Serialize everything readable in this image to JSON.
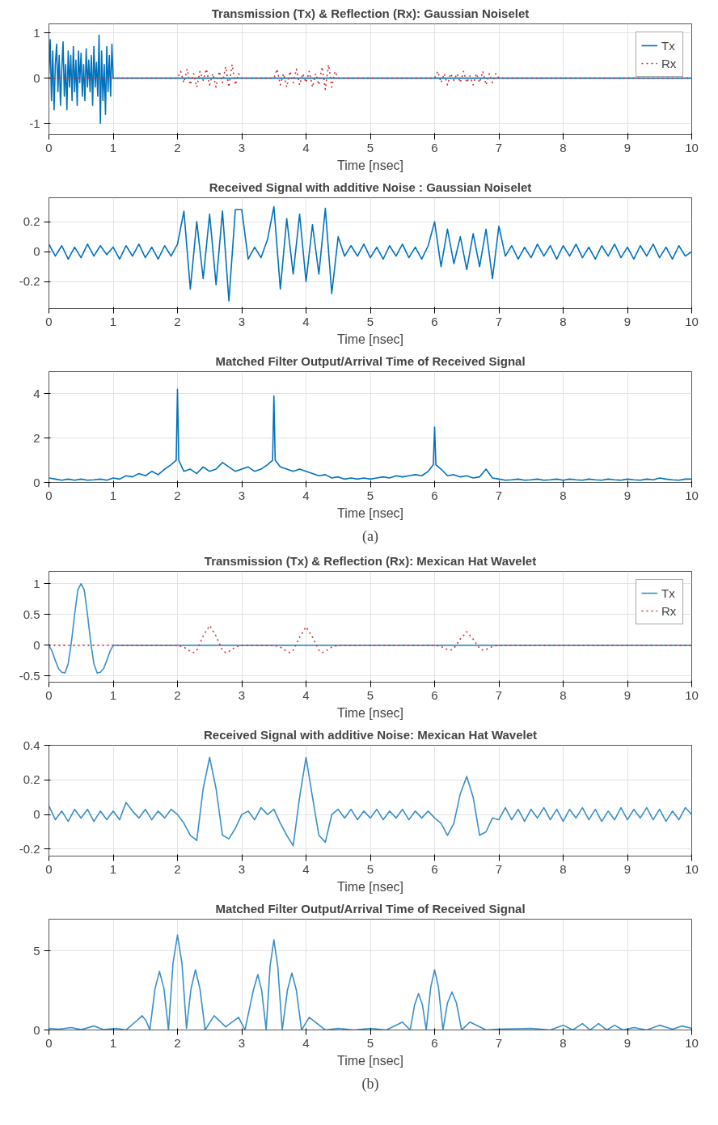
{
  "chart_data": [
    {
      "type": "line",
      "title": "Transmission (Tx) & Reflection (Rx): Gaussian Noiselet",
      "xlabel": "Time [nsec]",
      "xlim": [
        0,
        10
      ],
      "xticks": [
        0,
        1,
        2,
        3,
        4,
        5,
        6,
        7,
        8,
        9,
        10
      ],
      "ylim": [
        -1.25,
        1.2
      ],
      "yticks": [
        -1,
        0,
        1
      ],
      "grid": true,
      "legend": "top right",
      "series": [
        {
          "name": "Tx",
          "color": "#0072bd",
          "line_style": "solid",
          "x": [
            0,
            0.02,
            0.04,
            0.06,
            0.08,
            0.1,
            0.12,
            0.14,
            0.16,
            0.18,
            0.2,
            0.22,
            0.24,
            0.26,
            0.28,
            0.3,
            0.32,
            0.34,
            0.36,
            0.38,
            0.4,
            0.42,
            0.44,
            0.46,
            0.48,
            0.5,
            0.52,
            0.54,
            0.56,
            0.58,
            0.6,
            0.62,
            0.64,
            0.66,
            0.68,
            0.7,
            0.72,
            0.74,
            0.76,
            0.78,
            0.8,
            0.82,
            0.84,
            0.86,
            0.88,
            0.9,
            0.92,
            0.94,
            0.96,
            0.98,
            1.0,
            10
          ],
          "values": [
            0.1,
            0.85,
            -0.5,
            0.6,
            -0.7,
            0.3,
            0.75,
            -0.3,
            0.5,
            -0.6,
            0.2,
            0.8,
            -0.4,
            0.3,
            -0.7,
            0.6,
            -0.2,
            0.5,
            -0.5,
            0.7,
            -0.3,
            0.4,
            -0.6,
            0.6,
            -0.1,
            0.55,
            -0.4,
            0.3,
            -0.5,
            0.65,
            -0.2,
            0.4,
            -0.3,
            0.5,
            -0.6,
            0.7,
            -0.2,
            0.35,
            -0.4,
            0.95,
            -1.0,
            0.6,
            -0.5,
            0.3,
            -0.8,
            0.7,
            -0.3,
            0.5,
            -0.4,
            0.75,
            0,
            0
          ]
        },
        {
          "name": "Rx",
          "color": "#cc3333",
          "line_style": "dotted",
          "x": [
            0,
            2.0,
            2.05,
            2.1,
            2.15,
            2.2,
            2.25,
            2.3,
            2.35,
            2.4,
            2.45,
            2.5,
            2.55,
            2.6,
            2.65,
            2.7,
            2.75,
            2.8,
            2.85,
            2.9,
            2.95,
            3.0,
            3.5,
            3.55,
            3.6,
            3.65,
            3.7,
            3.75,
            3.8,
            3.85,
            3.9,
            3.95,
            4.0,
            4.05,
            4.1,
            4.15,
            4.2,
            4.25,
            4.3,
            4.35,
            4.4,
            4.45,
            4.5,
            6.0,
            6.05,
            6.1,
            6.15,
            6.2,
            6.25,
            6.3,
            6.35,
            6.4,
            6.45,
            6.5,
            6.55,
            6.6,
            6.65,
            6.7,
            6.75,
            6.8,
            6.85,
            6.9,
            6.95,
            7.0,
            10
          ],
          "values": [
            0,
            0,
            0.15,
            -0.1,
            0.2,
            -0.15,
            0.1,
            -0.2,
            0.15,
            -0.05,
            0.2,
            -0.15,
            0.1,
            -0.2,
            0.15,
            -0.1,
            0.25,
            -0.2,
            0.3,
            -0.15,
            0.1,
            0,
            0,
            0.2,
            -0.15,
            0.1,
            -0.2,
            0.15,
            -0.1,
            0.2,
            -0.15,
            0.1,
            -0.1,
            0.15,
            -0.2,
            0.1,
            -0.15,
            0.25,
            -0.25,
            0.3,
            -0.2,
            0.15,
            0,
            0,
            0.15,
            -0.1,
            0.1,
            -0.15,
            0.1,
            -0.05,
            0.1,
            -0.1,
            0.15,
            -0.1,
            0.05,
            -0.15,
            0.1,
            -0.1,
            0.15,
            -0.15,
            0.1,
            -0.1,
            0.1,
            0,
            0
          ]
        }
      ]
    },
    {
      "type": "line",
      "title": "Received Signal with additive Noise : Gaussian Noiselet",
      "xlabel": "Time [nsec]",
      "xlim": [
        0,
        10
      ],
      "xticks": [
        0,
        1,
        2,
        3,
        4,
        5,
        6,
        7,
        8,
        9,
        10
      ],
      "ylim": [
        -0.38,
        0.36
      ],
      "yticks": [
        -0.2,
        0,
        0.2
      ],
      "grid": true,
      "series": [
        {
          "color": "#0072bd",
          "line_style": "solid",
          "x": [
            0,
            0.1,
            0.2,
            0.3,
            0.4,
            0.5,
            0.6,
            0.7,
            0.8,
            0.9,
            1.0,
            1.1,
            1.2,
            1.3,
            1.4,
            1.5,
            1.6,
            1.7,
            1.8,
            1.9,
            2.0,
            2.1,
            2.2,
            2.3,
            2.4,
            2.5,
            2.6,
            2.7,
            2.8,
            2.9,
            3.0,
            3.1,
            3.2,
            3.3,
            3.4,
            3.5,
            3.6,
            3.7,
            3.8,
            3.9,
            4.0,
            4.1,
            4.2,
            4.3,
            4.4,
            4.5,
            4.6,
            4.7,
            4.8,
            4.9,
            5.0,
            5.1,
            5.2,
            5.3,
            5.4,
            5.5,
            5.6,
            5.7,
            5.8,
            5.9,
            6.0,
            6.1,
            6.2,
            6.3,
            6.4,
            6.5,
            6.6,
            6.7,
            6.8,
            6.9,
            7.0,
            7.1,
            7.2,
            7.3,
            7.4,
            7.5,
            7.6,
            7.7,
            7.8,
            7.9,
            8.0,
            8.1,
            8.2,
            8.3,
            8.4,
            8.5,
            8.6,
            8.7,
            8.8,
            8.9,
            9.0,
            9.1,
            9.2,
            9.3,
            9.4,
            9.5,
            9.6,
            9.7,
            9.8,
            9.9,
            10.0
          ],
          "values": [
            0.05,
            -0.03,
            0.04,
            -0.05,
            0.03,
            -0.04,
            0.05,
            -0.03,
            0.04,
            -0.02,
            0.03,
            -0.05,
            0.04,
            -0.03,
            0.05,
            -0.04,
            0.03,
            -0.05,
            0.04,
            -0.03,
            0.05,
            0.27,
            -0.25,
            0.2,
            -0.18,
            0.25,
            -0.22,
            0.27,
            -0.33,
            0.28,
            0.28,
            -0.05,
            0.03,
            -0.04,
            0.08,
            0.3,
            -0.25,
            0.22,
            -0.15,
            0.25,
            -0.2,
            0.18,
            -0.15,
            0.29,
            -0.28,
            0.1,
            -0.03,
            0.04,
            -0.03,
            0.05,
            -0.04,
            0.03,
            -0.05,
            0.04,
            -0.03,
            0.05,
            -0.04,
            0.03,
            -0.05,
            0.04,
            0.2,
            -0.1,
            0.15,
            -0.08,
            0.1,
            -0.12,
            0.12,
            -0.1,
            0.15,
            -0.18,
            0.17,
            -0.03,
            0.04,
            -0.05,
            0.03,
            -0.04,
            0.05,
            -0.03,
            0.04,
            -0.05,
            0.04,
            -0.03,
            0.05,
            -0.04,
            0.03,
            -0.05,
            0.04,
            -0.03,
            0.05,
            -0.04,
            0.03,
            -0.05,
            0.04,
            -0.03,
            0.05,
            -0.04,
            0.03,
            -0.05,
            0.04,
            -0.03,
            0.0
          ]
        }
      ]
    },
    {
      "type": "line",
      "title": "Matched Filter Output/Arrival Time of Received Signal",
      "xlabel": "Time [nsec]",
      "xlim": [
        0,
        10
      ],
      "xticks": [
        0,
        1,
        2,
        3,
        4,
        5,
        6,
        7,
        8,
        9,
        10
      ],
      "ylim": [
        0,
        5
      ],
      "yticks": [
        0,
        2,
        4
      ],
      "grid": true,
      "annotations": [
        "(a)"
      ],
      "series": [
        {
          "color": "#0072bd",
          "line_style": "solid",
          "x": [
            0,
            0.1,
            0.2,
            0.3,
            0.4,
            0.5,
            0.6,
            0.7,
            0.8,
            0.9,
            1.0,
            1.1,
            1.2,
            1.3,
            1.4,
            1.5,
            1.6,
            1.7,
            1.8,
            1.9,
            1.98,
            2.0,
            2.02,
            2.1,
            2.2,
            2.3,
            2.4,
            2.5,
            2.6,
            2.7,
            2.8,
            2.9,
            3.0,
            3.1,
            3.2,
            3.3,
            3.4,
            3.48,
            3.5,
            3.52,
            3.6,
            3.7,
            3.8,
            3.9,
            4.0,
            4.1,
            4.2,
            4.3,
            4.4,
            4.5,
            4.6,
            4.7,
            4.8,
            4.9,
            5.0,
            5.1,
            5.2,
            5.3,
            5.4,
            5.5,
            5.6,
            5.7,
            5.8,
            5.9,
            5.98,
            6.0,
            6.02,
            6.1,
            6.2,
            6.3,
            6.4,
            6.5,
            6.6,
            6.7,
            6.8,
            6.9,
            7.0,
            7.1,
            7.2,
            7.3,
            7.4,
            7.5,
            7.6,
            7.7,
            7.8,
            7.9,
            8.0,
            8.1,
            8.2,
            8.3,
            8.4,
            8.5,
            8.6,
            8.7,
            8.8,
            8.9,
            9.0,
            9.1,
            9.2,
            9.3,
            9.4,
            9.5,
            9.6,
            9.7,
            9.8,
            9.9,
            10.0
          ],
          "values": [
            0.2,
            0.15,
            0.1,
            0.15,
            0.1,
            0.15,
            0.1,
            0.12,
            0.15,
            0.1,
            0.2,
            0.15,
            0.3,
            0.25,
            0.4,
            0.3,
            0.5,
            0.35,
            0.6,
            0.8,
            1.0,
            4.2,
            1.0,
            0.5,
            0.6,
            0.4,
            0.7,
            0.5,
            0.6,
            0.9,
            0.7,
            0.5,
            0.6,
            0.7,
            0.5,
            0.6,
            0.8,
            1.0,
            3.9,
            1.0,
            0.7,
            0.6,
            0.5,
            0.6,
            0.5,
            0.4,
            0.3,
            0.35,
            0.2,
            0.25,
            0.15,
            0.2,
            0.15,
            0.2,
            0.15,
            0.2,
            0.25,
            0.2,
            0.3,
            0.25,
            0.3,
            0.35,
            0.3,
            0.5,
            0.8,
            2.5,
            0.8,
            0.6,
            0.3,
            0.35,
            0.25,
            0.3,
            0.2,
            0.25,
            0.6,
            0.2,
            0.15,
            0.1,
            0.12,
            0.15,
            0.1,
            0.12,
            0.15,
            0.1,
            0.12,
            0.15,
            0.1,
            0.15,
            0.12,
            0.1,
            0.15,
            0.12,
            0.1,
            0.15,
            0.12,
            0.1,
            0.15,
            0.12,
            0.1,
            0.15,
            0.12,
            0.2,
            0.15,
            0.12,
            0.1,
            0.15,
            0.15
          ]
        }
      ]
    },
    {
      "type": "line",
      "title": "Transmission (Tx) & Reflection (Rx): Mexican Hat Wavelet",
      "xlabel": "Time [nsec]",
      "xlim": [
        0,
        10
      ],
      "xticks": [
        0,
        1,
        2,
        3,
        4,
        5,
        6,
        7,
        8,
        9,
        10
      ],
      "ylim": [
        -0.6,
        1.2
      ],
      "yticks": [
        -0.5,
        0,
        0.5,
        1
      ],
      "grid": true,
      "legend": "top right",
      "series": [
        {
          "name": "Tx",
          "color": "#3a8fc8",
          "line_style": "solid",
          "x": [
            0,
            0.05,
            0.1,
            0.15,
            0.2,
            0.25,
            0.3,
            0.35,
            0.4,
            0.45,
            0.5,
            0.55,
            0.6,
            0.65,
            0.7,
            0.75,
            0.8,
            0.85,
            0.9,
            0.95,
            1.0,
            10
          ],
          "values": [
            0,
            -0.1,
            -0.25,
            -0.38,
            -0.44,
            -0.45,
            -0.3,
            0.05,
            0.5,
            0.9,
            1.0,
            0.9,
            0.5,
            0.05,
            -0.3,
            -0.45,
            -0.44,
            -0.38,
            -0.25,
            -0.1,
            0,
            0
          ]
        },
        {
          "name": "Rx",
          "color": "#cc3333",
          "line_style": "dotted",
          "x": [
            0,
            2.0,
            2.1,
            2.2,
            2.25,
            2.3,
            2.4,
            2.5,
            2.6,
            2.7,
            2.75,
            2.8,
            2.9,
            3.0,
            3.5,
            3.6,
            3.7,
            3.75,
            3.8,
            3.9,
            4.0,
            4.1,
            4.2,
            4.25,
            4.3,
            4.4,
            4.5,
            6.0,
            6.1,
            6.2,
            6.25,
            6.3,
            6.4,
            6.5,
            6.6,
            6.7,
            6.75,
            6.8,
            6.9,
            7.0,
            10
          ],
          "values": [
            0,
            0,
            -0.03,
            -0.1,
            -0.12,
            -0.08,
            0.15,
            0.32,
            0.15,
            -0.08,
            -0.12,
            -0.1,
            -0.03,
            0,
            0,
            -0.03,
            -0.1,
            -0.12,
            -0.08,
            0.13,
            0.3,
            0.13,
            -0.08,
            -0.12,
            -0.1,
            -0.03,
            0,
            0,
            -0.02,
            -0.07,
            -0.08,
            -0.05,
            0.1,
            0.22,
            0.1,
            -0.05,
            -0.08,
            -0.07,
            -0.02,
            0,
            0
          ]
        }
      ]
    },
    {
      "type": "line",
      "title": "Received Signal with additive Noise: Mexican Hat Wavelet",
      "xlabel": "Time [nsec]",
      "xlim": [
        0,
        10
      ],
      "xticks": [
        0,
        1,
        2,
        3,
        4,
        5,
        6,
        7,
        8,
        9,
        10
      ],
      "ylim": [
        -0.24,
        0.4
      ],
      "yticks": [
        -0.2,
        0,
        0.2,
        0.4
      ],
      "grid": true,
      "series": [
        {
          "color": "#3a8fc8",
          "line_style": "solid",
          "x": [
            0,
            0.1,
            0.2,
            0.3,
            0.4,
            0.5,
            0.6,
            0.7,
            0.8,
            0.9,
            1.0,
            1.1,
            1.2,
            1.3,
            1.4,
            1.5,
            1.6,
            1.7,
            1.8,
            1.9,
            2.0,
            2.1,
            2.2,
            2.3,
            2.4,
            2.5,
            2.6,
            2.7,
            2.8,
            2.9,
            3.0,
            3.1,
            3.2,
            3.3,
            3.4,
            3.5,
            3.6,
            3.7,
            3.8,
            3.9,
            4.0,
            4.1,
            4.2,
            4.3,
            4.4,
            4.5,
            4.6,
            4.7,
            4.8,
            4.9,
            5.0,
            5.1,
            5.2,
            5.3,
            5.4,
            5.5,
            5.6,
            5.7,
            5.8,
            5.9,
            6.0,
            6.1,
            6.2,
            6.3,
            6.4,
            6.5,
            6.6,
            6.7,
            6.8,
            6.9,
            7.0,
            7.1,
            7.2,
            7.3,
            7.4,
            7.5,
            7.6,
            7.7,
            7.8,
            7.9,
            8.0,
            8.1,
            8.2,
            8.3,
            8.4,
            8.5,
            8.6,
            8.7,
            8.8,
            8.9,
            9.0,
            9.1,
            9.2,
            9.3,
            9.4,
            9.5,
            9.6,
            9.7,
            9.8,
            9.9,
            10.0
          ],
          "values": [
            0.05,
            -0.03,
            0.02,
            -0.04,
            0.03,
            -0.02,
            0.03,
            -0.04,
            0.02,
            -0.03,
            0.02,
            -0.03,
            0.07,
            0.02,
            -0.02,
            0.03,
            -0.03,
            0.02,
            -0.02,
            0.03,
            0.0,
            -0.05,
            -0.12,
            -0.15,
            0.15,
            0.33,
            0.15,
            -0.12,
            -0.14,
            -0.08,
            0.0,
            0.02,
            -0.03,
            0.04,
            0.0,
            0.03,
            -0.05,
            -0.12,
            -0.18,
            0.1,
            0.33,
            0.1,
            -0.12,
            -0.16,
            0.0,
            0.03,
            -0.02,
            0.03,
            -0.03,
            0.02,
            -0.02,
            0.03,
            -0.03,
            0.02,
            -0.02,
            0.03,
            -0.03,
            0.02,
            -0.02,
            0.02,
            -0.02,
            -0.05,
            -0.12,
            -0.05,
            0.12,
            0.22,
            0.1,
            -0.12,
            -0.1,
            -0.02,
            -0.03,
            0.04,
            -0.03,
            0.03,
            -0.04,
            0.03,
            -0.02,
            0.04,
            -0.03,
            0.03,
            -0.04,
            0.03,
            -0.02,
            0.04,
            -0.03,
            0.03,
            -0.04,
            0.02,
            -0.03,
            0.04,
            -0.03,
            0.03,
            -0.02,
            0.04,
            -0.03,
            0.03,
            -0.04,
            0.02,
            -0.03,
            0.04,
            0.0
          ]
        }
      ]
    },
    {
      "type": "line",
      "title": "Matched Filter Output/Arrival Time of Received Signal",
      "xlabel": "Time [nsec]",
      "xlim": [
        0,
        10
      ],
      "xticks": [
        0,
        1,
        2,
        3,
        4,
        5,
        6,
        7,
        8,
        9,
        10
      ],
      "ylim": [
        0,
        7
      ],
      "yticks": [
        0,
        5
      ],
      "grid": true,
      "annotations": [
        "(b)"
      ],
      "series": [
        {
          "color": "#3a8fc8",
          "line_style": "solid",
          "x": [
            0,
            0.15,
            0.35,
            0.5,
            0.7,
            0.85,
            1.05,
            1.2,
            1.37,
            1.45,
            1.51,
            1.57,
            1.65,
            1.72,
            1.79,
            1.86,
            1.93,
            2.0,
            2.07,
            2.14,
            2.21,
            2.28,
            2.35,
            2.43,
            2.57,
            2.75,
            2.95,
            3.05,
            3.18,
            3.25,
            3.31,
            3.38,
            3.44,
            3.5,
            3.56,
            3.63,
            3.71,
            3.78,
            3.85,
            3.93,
            4.05,
            4.3,
            4.5,
            4.75,
            5.0,
            5.25,
            5.5,
            5.62,
            5.69,
            5.75,
            5.81,
            5.87,
            5.94,
            6.0,
            6.06,
            6.13,
            6.2,
            6.27,
            6.34,
            6.42,
            6.55,
            6.8,
            7.0,
            7.5,
            7.8,
            8.0,
            8.15,
            8.3,
            8.42,
            8.55,
            8.68,
            8.8,
            8.93,
            9.1,
            9.3,
            9.5,
            9.7,
            9.85,
            10.0
          ],
          "values": [
            0.1,
            0.05,
            0.15,
            0.02,
            0.25,
            0.02,
            0.1,
            0.0,
            0.6,
            0.9,
            0.6,
            0.0,
            2.6,
            3.7,
            2.6,
            0.0,
            4.2,
            6.0,
            4.2,
            0.1,
            2.6,
            3.8,
            2.6,
            0.0,
            0.9,
            0.2,
            0.8,
            0.0,
            2.5,
            3.5,
            2.5,
            0.0,
            4.0,
            5.7,
            4.0,
            0.0,
            2.5,
            3.6,
            2.5,
            0.0,
            0.8,
            0.0,
            0.1,
            0.0,
            0.1,
            0.0,
            0.5,
            0.0,
            1.6,
            2.3,
            1.6,
            0.0,
            2.7,
            3.8,
            2.7,
            0.0,
            1.7,
            2.4,
            1.7,
            0.0,
            0.5,
            0.0,
            0.05,
            0.1,
            0.0,
            0.3,
            0.0,
            0.4,
            0.0,
            0.4,
            0.0,
            0.3,
            0.0,
            0.15,
            0.0,
            0.3,
            0.05,
            0.25,
            0.1
          ]
        }
      ]
    }
  ]
}
